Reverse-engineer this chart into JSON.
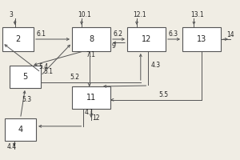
{
  "boxes": {
    "2": [
      0.01,
      0.68,
      0.13,
      0.15
    ],
    "8": [
      0.3,
      0.68,
      0.16,
      0.15
    ],
    "12": [
      0.53,
      0.68,
      0.16,
      0.15
    ],
    "13": [
      0.76,
      0.68,
      0.16,
      0.15
    ],
    "5": [
      0.04,
      0.45,
      0.13,
      0.14
    ],
    "11": [
      0.3,
      0.32,
      0.16,
      0.14
    ],
    "4": [
      0.02,
      0.12,
      0.13,
      0.14
    ]
  },
  "line_color": "#555555",
  "text_color": "#222222",
  "bg_color": "#f0ede4",
  "font_size": 7,
  "label_font_size": 5.5
}
